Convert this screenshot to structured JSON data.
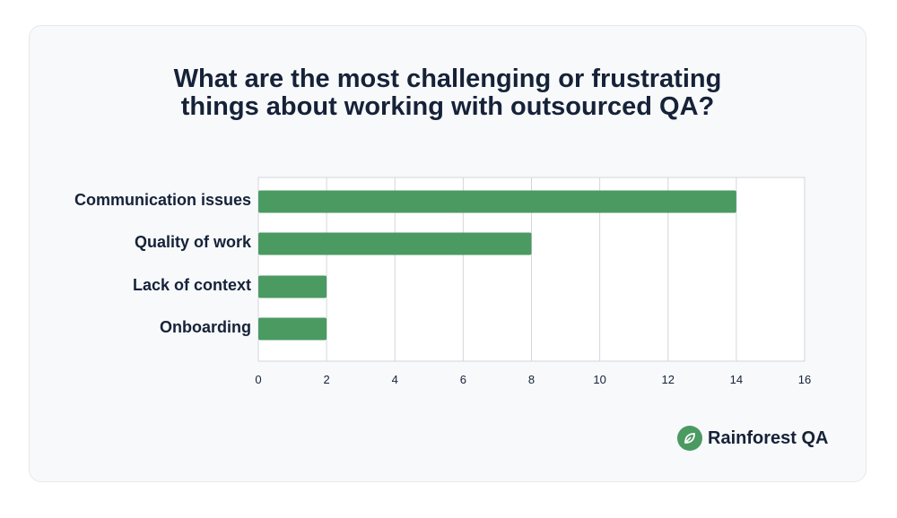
{
  "title_lines": [
    "What are the most challenging or frustrating",
    "things about working with outsourced QA?"
  ],
  "brand": {
    "name": "Rainforest QA",
    "logo_icon": "leaf-icon",
    "accent": "#4a9a62"
  },
  "chart_data": {
    "type": "bar",
    "orientation": "horizontal",
    "categories": [
      "Communication issues",
      "Quality of work",
      "Lack of context",
      "Onboarding"
    ],
    "values": [
      14,
      8,
      2,
      2
    ],
    "xlim": [
      0,
      16
    ],
    "xticks": [
      0,
      2,
      4,
      6,
      8,
      10,
      12,
      14,
      16
    ],
    "grid": "vertical",
    "bar_color": "#4a9a62",
    "grid_color": "#d3d6db",
    "xlabel": "",
    "ylabel": ""
  }
}
